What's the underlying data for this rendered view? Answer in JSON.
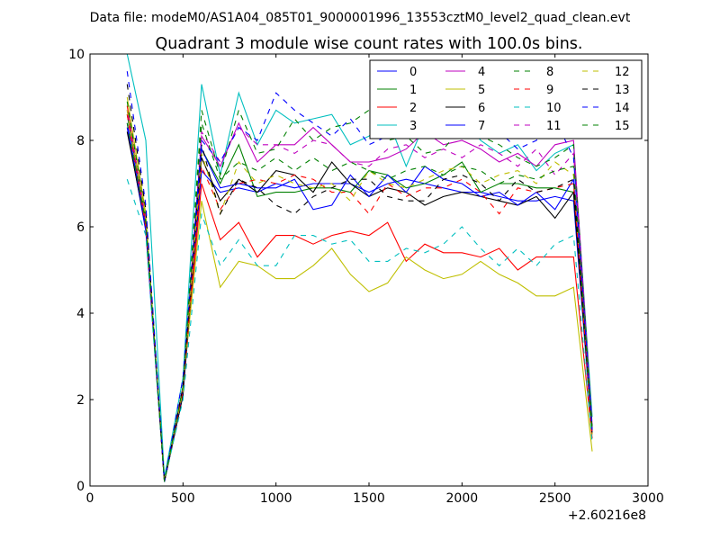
{
  "header": {
    "data_file": "Data file: modeM0/AS1A04_085T01_9000001996_13553cztM0_level2_quad_clean.evt"
  },
  "chart_data": {
    "type": "line",
    "title": "Quadrant 3 module wise count rates with 100.0s bins.",
    "xlabel": "",
    "ylabel": "",
    "x_offset_label": "+2.60216e8",
    "xlim": [
      0,
      3000
    ],
    "ylim": [
      0,
      10
    ],
    "xticks": [
      "0",
      "500",
      "1000",
      "1500",
      "2000",
      "2500",
      "3000"
    ],
    "yticks": [
      "0",
      "2",
      "4",
      "6",
      "8",
      "10"
    ],
    "grid": false,
    "legend_position": "top-right",
    "x": [
      200,
      300,
      400,
      500,
      600,
      700,
      800,
      900,
      1000,
      1100,
      1200,
      1300,
      1400,
      1500,
      1600,
      1700,
      1800,
      1900,
      2000,
      2100,
      2200,
      2300,
      2400,
      2500,
      2600,
      2700
    ],
    "series": [
      {
        "name": "0",
        "color": "#0000ff",
        "dash": "solid",
        "values": [
          8.3,
          5.9,
          0.1,
          2.1,
          7.3,
          6.8,
          6.9,
          6.8,
          7.0,
          6.9,
          7.0,
          7.0,
          7.0,
          6.8,
          7.0,
          7.1,
          7.0,
          6.9,
          6.8,
          6.8,
          6.7,
          6.6,
          6.6,
          6.7,
          6.6,
          1.2
        ]
      },
      {
        "name": "1",
        "color": "#008000",
        "dash": "solid",
        "values": [
          8.6,
          6.1,
          0.1,
          2.2,
          7.8,
          7.0,
          7.9,
          6.7,
          6.8,
          6.8,
          6.9,
          6.9,
          6.8,
          7.3,
          7.2,
          6.9,
          7.0,
          7.2,
          7.5,
          6.8,
          7.0,
          7.0,
          6.9,
          6.9,
          6.8,
          1.3
        ]
      },
      {
        "name": "2",
        "color": "#ff0000",
        "dash": "solid",
        "values": [
          8.8,
          6.1,
          0.1,
          2.2,
          7.0,
          5.7,
          6.1,
          5.3,
          5.8,
          5.8,
          5.6,
          5.8,
          5.9,
          5.8,
          6.1,
          5.2,
          5.6,
          5.4,
          5.4,
          5.3,
          5.5,
          5.0,
          5.3,
          5.3,
          5.3,
          1.1
        ]
      },
      {
        "name": "3",
        "color": "#00bfbf",
        "dash": "solid",
        "values": [
          10.0,
          8.0,
          0.2,
          2.5,
          9.3,
          7.2,
          9.1,
          7.9,
          8.7,
          8.4,
          8.5,
          8.6,
          7.9,
          8.1,
          8.5,
          7.4,
          8.4,
          8.5,
          8.6,
          8.0,
          7.7,
          7.9,
          7.3,
          7.7,
          7.9,
          1.6
        ]
      },
      {
        "name": "4",
        "color": "#bf00bf",
        "dash": "solid",
        "values": [
          8.7,
          6.2,
          0.1,
          2.2,
          8.1,
          7.4,
          8.4,
          7.5,
          7.9,
          7.9,
          8.3,
          7.9,
          7.5,
          7.5,
          7.6,
          7.8,
          8.2,
          7.9,
          8.0,
          7.8,
          7.5,
          7.7,
          7.4,
          7.9,
          8.0,
          1.4
        ]
      },
      {
        "name": "5",
        "color": "#bfbf00",
        "dash": "solid",
        "values": [
          9.0,
          6.3,
          0.1,
          2.3,
          6.6,
          4.6,
          5.2,
          5.1,
          4.8,
          4.8,
          5.1,
          5.5,
          4.9,
          4.5,
          4.7,
          5.3,
          5.0,
          4.8,
          4.9,
          5.2,
          4.9,
          4.7,
          4.4,
          4.4,
          4.6,
          0.8
        ]
      },
      {
        "name": "6",
        "color": "#000000",
        "dash": "solid",
        "values": [
          8.2,
          6.0,
          0.1,
          2.1,
          7.6,
          6.6,
          7.1,
          6.8,
          7.3,
          7.2,
          6.8,
          7.5,
          7.0,
          6.7,
          6.9,
          6.8,
          6.5,
          6.7,
          6.8,
          6.7,
          6.6,
          6.5,
          6.7,
          6.2,
          6.8,
          1.2
        ]
      },
      {
        "name": "7",
        "color": "#0000ff",
        "dash": "solid",
        "values": [
          8.4,
          6.0,
          0.1,
          2.2,
          7.8,
          6.9,
          7.0,
          6.9,
          6.9,
          7.1,
          6.4,
          6.5,
          7.2,
          6.7,
          7.2,
          6.8,
          7.4,
          7.1,
          7.0,
          6.7,
          6.8,
          6.5,
          6.8,
          6.4,
          7.1,
          1.3
        ]
      },
      {
        "name": "8",
        "color": "#008000",
        "dash": "dashed",
        "values": [
          8.9,
          6.2,
          0.1,
          2.3,
          8.7,
          7.2,
          8.7,
          7.7,
          7.8,
          8.5,
          8.0,
          8.3,
          8.4,
          8.7,
          8.0,
          8.1,
          7.7,
          7.8,
          8.3,
          8.1,
          7.9,
          7.6,
          7.4,
          7.6,
          7.9,
          1.4
        ]
      },
      {
        "name": "9",
        "color": "#ff0000",
        "dash": "dashed",
        "values": [
          8.6,
          6.0,
          0.1,
          2.2,
          7.4,
          6.4,
          7.0,
          7.1,
          7.0,
          7.2,
          7.1,
          6.8,
          6.8,
          6.3,
          7.0,
          6.7,
          6.9,
          6.9,
          7.1,
          6.8,
          6.3,
          6.9,
          6.8,
          6.9,
          7.0,
          1.2
        ]
      },
      {
        "name": "10",
        "color": "#00bfbf",
        "dash": "dashed",
        "values": [
          7.1,
          5.8,
          0.1,
          2.0,
          6.3,
          5.1,
          5.7,
          5.1,
          5.1,
          5.8,
          5.8,
          5.6,
          5.7,
          5.2,
          5.2,
          5.5,
          5.4,
          5.6,
          6.0,
          5.5,
          5.1,
          5.5,
          5.1,
          5.6,
          5.8,
          1.0
        ]
      },
      {
        "name": "11",
        "color": "#bf00bf",
        "dash": "dashed",
        "values": [
          8.7,
          6.1,
          0.1,
          2.3,
          8.2,
          7.5,
          8.3,
          7.9,
          7.9,
          7.7,
          8.0,
          7.9,
          7.5,
          7.4,
          7.8,
          7.9,
          7.6,
          7.8,
          7.6,
          7.9,
          7.7,
          7.4,
          7.8,
          7.2,
          7.7,
          1.3
        ]
      },
      {
        "name": "12",
        "color": "#bfbf00",
        "dash": "dashed",
        "values": [
          8.7,
          6.2,
          0.1,
          2.2,
          7.7,
          6.3,
          7.5,
          7.0,
          7.2,
          7.0,
          6.9,
          7.0,
          6.6,
          7.3,
          7.0,
          6.9,
          7.1,
          7.3,
          7.4,
          7.0,
          7.2,
          7.3,
          7.0,
          7.5,
          7.2,
          1.2
        ]
      },
      {
        "name": "13",
        "color": "#000000",
        "dash": "dashed",
        "values": [
          9.3,
          6.4,
          0.1,
          2.3,
          7.9,
          6.3,
          7.1,
          6.9,
          6.5,
          6.3,
          6.7,
          6.9,
          7.1,
          7.1,
          6.7,
          6.6,
          6.6,
          7.1,
          7.2,
          7.0,
          6.6,
          7.1,
          6.8,
          6.9,
          7.1,
          1.3
        ]
      },
      {
        "name": "14",
        "color": "#0000ff",
        "dash": "dashed",
        "values": [
          9.6,
          6.5,
          0.1,
          2.5,
          8.0,
          7.5,
          8.3,
          8.0,
          9.1,
          8.7,
          8.4,
          8.1,
          8.5,
          7.9,
          8.1,
          8.4,
          8.2,
          8.4,
          8.5,
          9.2,
          8.2,
          7.8,
          8.0,
          8.5,
          7.6,
          1.3
        ]
      },
      {
        "name": "15",
        "color": "#008000",
        "dash": "dashed",
        "values": [
          8.4,
          6.1,
          0.1,
          2.3,
          8.4,
          7.1,
          7.5,
          7.3,
          7.6,
          7.3,
          7.6,
          7.3,
          7.5,
          7.3,
          7.1,
          7.3,
          7.4,
          7.2,
          7.4,
          7.3,
          7.0,
          7.2,
          7.1,
          7.3,
          7.4,
          1.3
        ]
      }
    ]
  }
}
